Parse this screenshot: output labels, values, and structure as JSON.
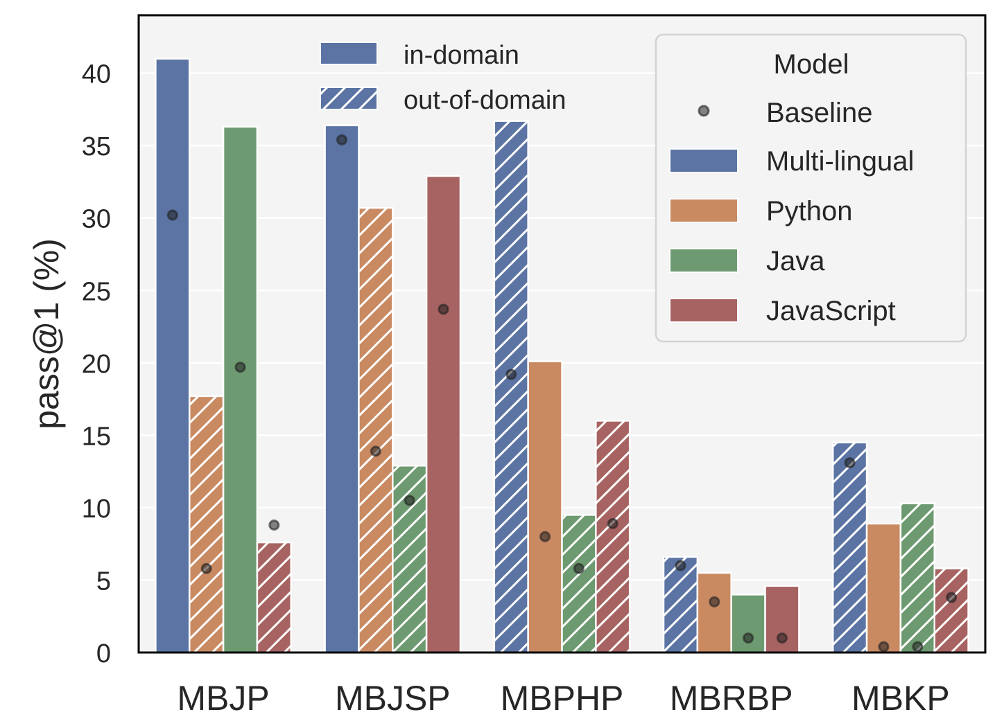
{
  "chart_data": {
    "type": "bar",
    "title": "",
    "xlabel": "",
    "ylabel": "pass@1 (%)",
    "ylim": [
      0,
      44
    ],
    "yticks": [
      0,
      5,
      10,
      15,
      20,
      25,
      30,
      35,
      40
    ],
    "grid": true,
    "categories": [
      "MBJP",
      "MBJSP",
      "MBPHP",
      "MBRBP",
      "MBKP"
    ],
    "series": [
      {
        "name": "Multi-lingual",
        "color": "#5b74a4",
        "values": [
          41.0,
          36.4,
          36.7,
          6.6,
          14.5
        ],
        "out_of_domain": [
          false,
          false,
          true,
          true,
          true
        ]
      },
      {
        "name": "Python",
        "color": "#c98a62",
        "values": [
          17.7,
          30.7,
          20.1,
          5.5,
          8.9
        ],
        "out_of_domain": [
          true,
          true,
          false,
          false,
          false
        ]
      },
      {
        "name": "Java",
        "color": "#6d9a70",
        "values": [
          36.3,
          12.9,
          9.5,
          4.0,
          10.3
        ],
        "out_of_domain": [
          false,
          true,
          true,
          false,
          true
        ]
      },
      {
        "name": "JavaScript",
        "color": "#a76361",
        "values": [
          7.6,
          32.9,
          16.0,
          4.6,
          5.8
        ],
        "out_of_domain": [
          true,
          false,
          true,
          false,
          true
        ]
      }
    ],
    "baseline": {
      "name": "Baseline",
      "values": [
        [
          30.2,
          5.8,
          19.7,
          8.8
        ],
        [
          35.4,
          13.9,
          10.5,
          23.7
        ],
        [
          19.2,
          8.0,
          5.8,
          8.9
        ],
        [
          6.0,
          3.5,
          1.0,
          1.0
        ],
        [
          13.1,
          0.4,
          0.4,
          3.8
        ]
      ]
    },
    "legend_hatch": {
      "position": "top-center",
      "entries": [
        "in-domain",
        "out-of-domain"
      ]
    },
    "legend_model": {
      "position": "top-right",
      "title": "Model"
    }
  }
}
